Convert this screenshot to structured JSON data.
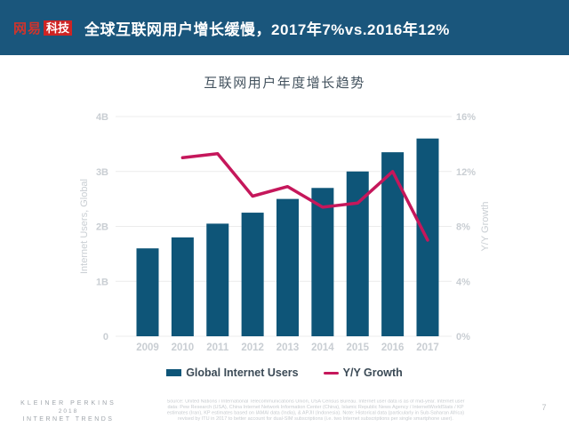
{
  "header": {
    "logo_brand": "网易",
    "logo_sub": "科技",
    "title": "全球互联网用户增长缓慢，2017年7%vs.2016年12%"
  },
  "chart_data": {
    "type": "bar",
    "title": "互联网用户年度增长趋势",
    "categories": [
      "2009",
      "2010",
      "2011",
      "2012",
      "2013",
      "2014",
      "2015",
      "2016",
      "2017"
    ],
    "series": [
      {
        "name": "Global Internet Users",
        "type": "bar",
        "axis": "left",
        "values": [
          1.6,
          1.8,
          2.05,
          2.25,
          2.5,
          2.7,
          3.0,
          3.35,
          3.6
        ]
      },
      {
        "name": "Y/Y Growth",
        "type": "line",
        "axis": "right",
        "values": [
          null,
          13,
          13.3,
          10.2,
          10.9,
          9.4,
          9.7,
          12,
          7
        ]
      }
    ],
    "left_axis": {
      "label": "Internet Users, Global",
      "ticks": [
        "0",
        "1B",
        "2B",
        "3B",
        "4B"
      ],
      "min": 0,
      "max": 4
    },
    "right_axis": {
      "label": "Y/Y Growth",
      "ticks": [
        "0%",
        "4%",
        "8%",
        "12%",
        "16%"
      ],
      "min": 0,
      "max": 16
    },
    "grid": true,
    "legend_position": "bottom",
    "colors": {
      "bar": "#0E5578",
      "line": "#C5175B",
      "grid": "#ECECEC",
      "axis_text": "#C9CED3"
    }
  },
  "legend": {
    "items": [
      {
        "label": "Global Internet Users",
        "color": "#0E5578",
        "shape": "rect"
      },
      {
        "label": "Y/Y Growth",
        "color": "#C5175B",
        "shape": "line"
      }
    ]
  },
  "footer": {
    "brand_lines": [
      "KLEINER PERKINS",
      "2018",
      "INTERNET TRENDS"
    ],
    "source_lines": [
      "Source: United Nations / International Telecommunications Union, USA Census Bureau. Internet user data is as of mid-year. Internet user",
      "data: Pew Research (USA), China Internet Network Information Center (China), Islamic Republic News Agency / InternetWorldStats / KP",
      "estimates (Iran), KP estimates based on IAMAI data (India), & APJII (Indonesia). Note: Historical data (particularly in Sub-Saharan Africa)",
      "revised by ITU in 2017 to better account for dual-SIM subscriptions (i.e. two Internet subscriptions per single smartphone user)."
    ],
    "page_number": "7"
  }
}
